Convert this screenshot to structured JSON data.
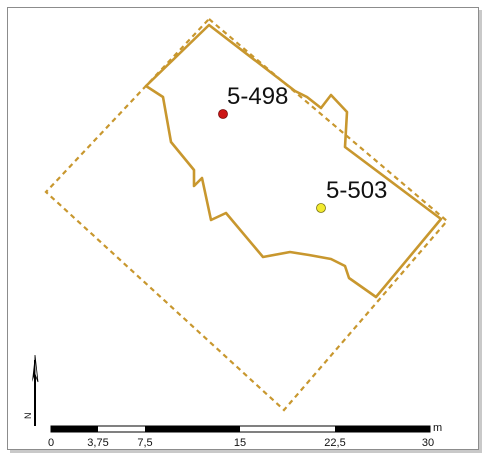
{
  "map": {
    "colors": {
      "outline": "#c8972e",
      "point_red": "#cc1414",
      "point_yellow": "#f2ea2e",
      "scalebar": "#000000"
    },
    "points": [
      {
        "label": "5-498",
        "color": "red"
      },
      {
        "label": "5-503",
        "color": "yellow"
      }
    ],
    "scalebar": {
      "ticks": [
        "0",
        "3,75",
        "7,5",
        "15",
        "22,5",
        "30"
      ],
      "unit": "m"
    },
    "north_arrow": {
      "label": "N",
      "icon": "north-arrow-icon"
    }
  }
}
